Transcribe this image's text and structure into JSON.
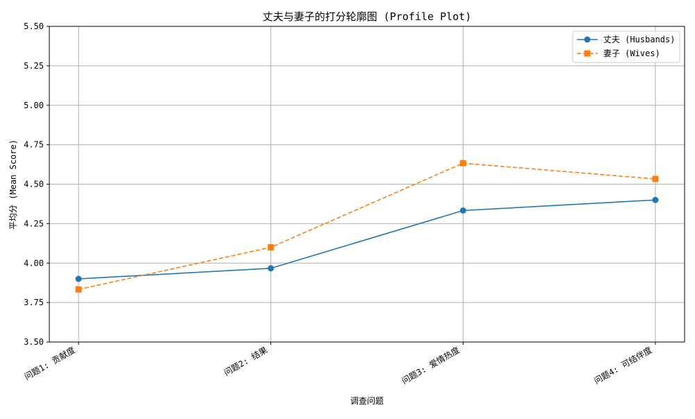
{
  "chart_data": {
    "type": "line",
    "title": "丈夫与妻子的打分轮廓图 (Profile Plot)",
    "xlabel": "调查问题",
    "ylabel": "平均分 (Mean Score)",
    "categories": [
      "问题1: 贡献度",
      "问题2: 结果",
      "问题3: 爱情热度",
      "问题4: 可结伴度"
    ],
    "ylim": [
      3.5,
      5.5
    ],
    "yticks": [
      "3.50",
      "3.75",
      "4.00",
      "4.25",
      "4.50",
      "4.75",
      "5.00",
      "5.25",
      "5.50"
    ],
    "grid": true,
    "legend_position": "top-right",
    "series": [
      {
        "name": "丈夫 (Husbands)",
        "values": [
          3.9,
          3.967,
          4.333,
          4.4
        ],
        "color": "#1f77b4",
        "marker": "circle",
        "line_style": "solid"
      },
      {
        "name": "妻子 (Wives)",
        "values": [
          3.833,
          4.1,
          4.633,
          4.533
        ],
        "color": "#ff7f0e",
        "marker": "square",
        "line_style": "dashed"
      }
    ]
  }
}
